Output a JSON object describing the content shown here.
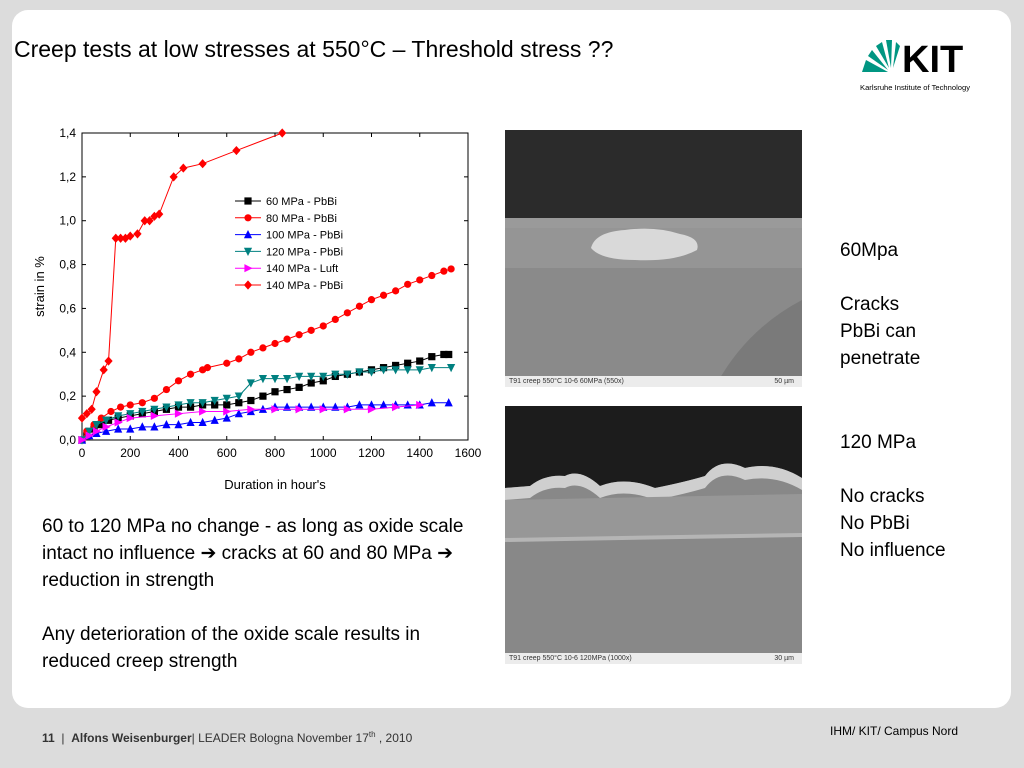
{
  "slide": {
    "title": "Creep tests at low stresses at 550°C – Threshold stress ??",
    "logo_text": "KIT",
    "logo_subtitle": "Karlsruhe Institute of Technology",
    "micrograph_top_caption": "T91 creep 550°C 10-6 60MPa (550x)",
    "micrograph_top_scale": "50 µm",
    "micrograph_bottom_caption": "T91 creep 550°C 10-6 120MPa (1000x)",
    "micrograph_bottom_scale": "30 µm",
    "right_notes_top": [
      "60Mpa",
      "",
      "Cracks",
      "PbBi can",
      "penetrate"
    ],
    "right_notes_bottom": [
      "120 MPa",
      "",
      "No cracks",
      "No PbBi",
      "No influence"
    ],
    "main_text_1_a": "60 to 120 MPa no change  - as long as oxide scale intact no influence ",
    "main_text_1_b": " cracks at 60 and 80 MPa ",
    "main_text_1_c": " reduction in strength",
    "arrow_glyph": "➔",
    "main_text_2": "Any deterioration of the oxide scale results in reduced creep strength",
    "footer_page": "11",
    "footer_sep": "|",
    "footer_author": "Alfons Weisenburger",
    "footer_event": "| LEADER Bologna November 17",
    "footer_sup": "th",
    "footer_year": " , 2010",
    "footer_right": "IHM/ KIT/ Campus Nord",
    "accent_color": "#009682"
  },
  "chart_data": {
    "type": "line",
    "title": "",
    "xlabel": "Duration in hour's",
    "ylabel": "strain in %",
    "xlim": [
      0,
      1600
    ],
    "ylim": [
      0,
      1.4
    ],
    "xticks": [
      0,
      200,
      400,
      600,
      800,
      1000,
      1200,
      1400,
      1600
    ],
    "xtick_labels": [
      "0",
      "200",
      "400",
      "600",
      "800",
      "1000",
      "1200",
      "1400",
      "1600"
    ],
    "yticks": [
      0,
      0.2,
      0.4,
      0.6,
      0.8,
      1.0,
      1.2,
      1.4
    ],
    "ytick_labels": [
      "0,0",
      "0,2",
      "0,4",
      "0,6",
      "0,8",
      "1,0",
      "1,2",
      "1,4"
    ],
    "grid": false,
    "legend_position": "upper-middle",
    "series": [
      {
        "name": "60  MPa - PbBi",
        "color": "#000000",
        "marker": "square",
        "x": [
          0,
          20,
          50,
          80,
          110,
          150,
          200,
          250,
          300,
          350,
          400,
          450,
          500,
          550,
          600,
          650,
          700,
          750,
          800,
          850,
          900,
          950,
          1000,
          1050,
          1100,
          1150,
          1200,
          1250,
          1300,
          1350,
          1400,
          1450,
          1500,
          1520
        ],
        "y": [
          0,
          0.02,
          0.05,
          0.07,
          0.09,
          0.1,
          0.11,
          0.12,
          0.13,
          0.14,
          0.15,
          0.15,
          0.16,
          0.16,
          0.16,
          0.17,
          0.18,
          0.2,
          0.22,
          0.23,
          0.24,
          0.26,
          0.27,
          0.29,
          0.3,
          0.31,
          0.32,
          0.33,
          0.34,
          0.35,
          0.36,
          0.38,
          0.39,
          0.39
        ]
      },
      {
        "name": "80  MPa - PbBi",
        "color": "#ff0000",
        "marker": "circle",
        "x": [
          0,
          20,
          50,
          80,
          120,
          160,
          200,
          250,
          300,
          350,
          400,
          450,
          500,
          520,
          600,
          650,
          700,
          750,
          800,
          850,
          900,
          950,
          1000,
          1050,
          1100,
          1150,
          1200,
          1250,
          1300,
          1350,
          1400,
          1450,
          1500,
          1530
        ],
        "y": [
          0,
          0.04,
          0.07,
          0.1,
          0.13,
          0.15,
          0.16,
          0.17,
          0.19,
          0.23,
          0.27,
          0.3,
          0.32,
          0.33,
          0.35,
          0.37,
          0.4,
          0.42,
          0.44,
          0.46,
          0.48,
          0.5,
          0.52,
          0.55,
          0.58,
          0.61,
          0.64,
          0.66,
          0.68,
          0.71,
          0.73,
          0.75,
          0.77,
          0.78
        ]
      },
      {
        "name": "100 MPa - PbBi",
        "color": "#0000ff",
        "marker": "triangle-up",
        "x": [
          0,
          30,
          60,
          100,
          150,
          200,
          250,
          300,
          350,
          400,
          450,
          500,
          550,
          600,
          650,
          700,
          750,
          800,
          850,
          900,
          950,
          1000,
          1050,
          1100,
          1150,
          1200,
          1250,
          1300,
          1350,
          1400,
          1450,
          1520
        ],
        "y": [
          0,
          0.02,
          0.03,
          0.04,
          0.05,
          0.05,
          0.06,
          0.06,
          0.07,
          0.07,
          0.08,
          0.08,
          0.09,
          0.1,
          0.12,
          0.13,
          0.14,
          0.15,
          0.15,
          0.15,
          0.15,
          0.15,
          0.15,
          0.15,
          0.16,
          0.16,
          0.16,
          0.16,
          0.16,
          0.16,
          0.17,
          0.17
        ]
      },
      {
        "name": "120 MPa - PbBi",
        "color": "#008080",
        "marker": "triangle-down",
        "x": [
          0,
          30,
          60,
          100,
          150,
          200,
          250,
          300,
          350,
          400,
          450,
          500,
          550,
          600,
          650,
          700,
          750,
          800,
          850,
          900,
          950,
          1000,
          1050,
          1100,
          1150,
          1200,
          1250,
          1300,
          1350,
          1400,
          1450,
          1530
        ],
        "y": [
          0,
          0.04,
          0.07,
          0.09,
          0.11,
          0.12,
          0.13,
          0.14,
          0.15,
          0.16,
          0.17,
          0.17,
          0.18,
          0.19,
          0.2,
          0.26,
          0.28,
          0.28,
          0.28,
          0.29,
          0.29,
          0.29,
          0.3,
          0.3,
          0.31,
          0.31,
          0.32,
          0.32,
          0.32,
          0.32,
          0.33,
          0.33
        ]
      },
      {
        "name": "140 MPa - Luft",
        "color": "#ff00ff",
        "marker": "triangle-right",
        "x": [
          0,
          30,
          60,
          100,
          150,
          200,
          300,
          400,
          500,
          600,
          700,
          800,
          900,
          1000,
          1100,
          1200,
          1300,
          1400
        ],
        "y": [
          0,
          0.02,
          0.04,
          0.06,
          0.08,
          0.1,
          0.11,
          0.12,
          0.13,
          0.13,
          0.14,
          0.14,
          0.14,
          0.14,
          0.14,
          0.14,
          0.15,
          0.16
        ]
      },
      {
        "name": "140 MPa - PbBi",
        "color": "#ff0000",
        "marker": "diamond",
        "x": [
          0,
          20,
          40,
          60,
          90,
          110,
          140,
          160,
          180,
          200,
          230,
          260,
          280,
          300,
          320,
          380,
          420,
          500,
          640,
          830
        ],
        "y": [
          0.1,
          0.12,
          0.14,
          0.22,
          0.32,
          0.36,
          0.92,
          0.92,
          0.92,
          0.93,
          0.94,
          1.0,
          1.0,
          1.02,
          1.03,
          1.2,
          1.24,
          1.26,
          1.32,
          1.4
        ]
      }
    ]
  }
}
